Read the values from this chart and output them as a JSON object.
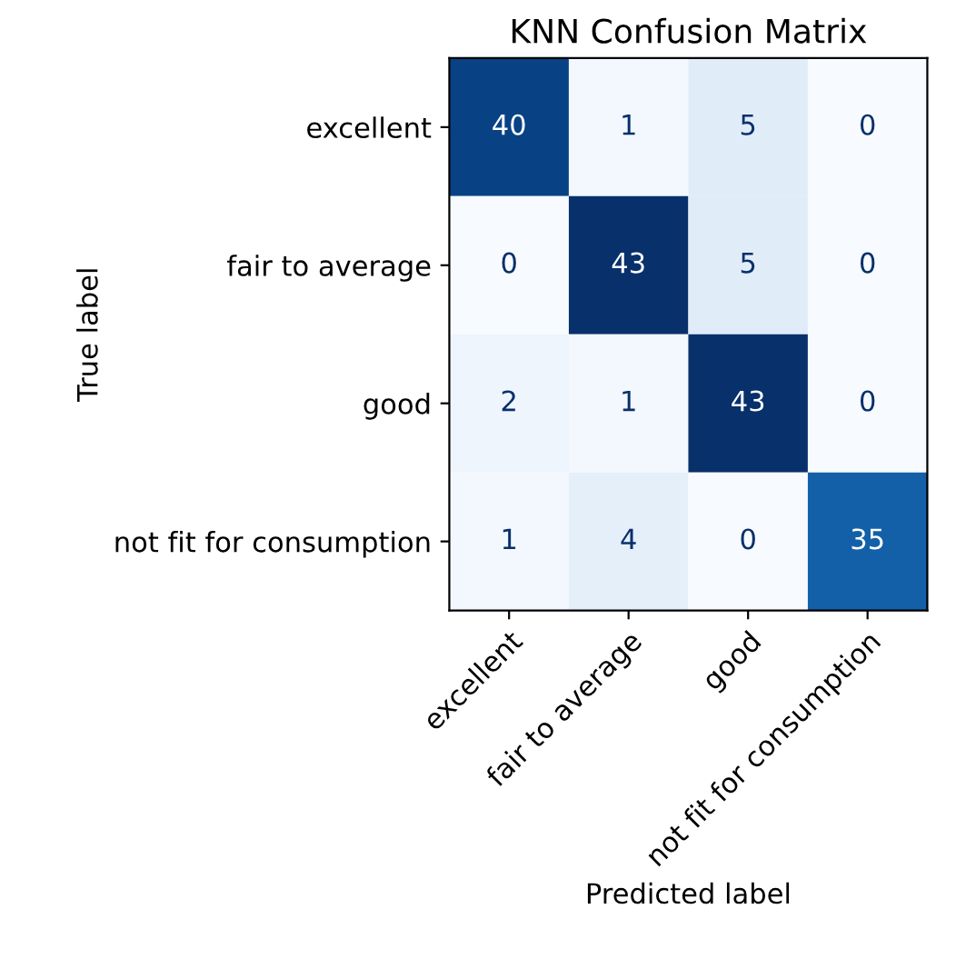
{
  "chart_data": {
    "type": "heatmap",
    "title": "KNN Confusion Matrix",
    "xlabel": "Predicted label",
    "ylabel": "True label",
    "categories": [
      "excellent",
      "fair to average",
      "good",
      "not fit for consumption"
    ],
    "y_categories": [
      "excellent",
      "fair to average",
      "good",
      "not fit for consumption"
    ],
    "cells": [
      [
        40,
        1,
        5,
        0
      ],
      [
        0,
        43,
        5,
        0
      ],
      [
        2,
        1,
        43,
        0
      ],
      [
        1,
        4,
        0,
        35
      ]
    ],
    "data_labels": true
  }
}
